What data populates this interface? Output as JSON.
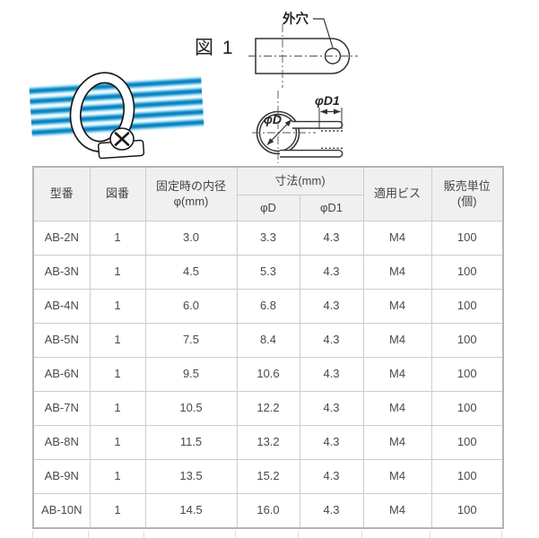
{
  "figure": {
    "label": "図 1",
    "outer_hole_label": "外穴",
    "phi_d_label": "φD",
    "phi_d1_label": "φD1"
  },
  "table": {
    "headers": {
      "model": "型番",
      "figure_no": "図番",
      "inner_diameter_line1": "固定時の内径",
      "inner_diameter_line2": "φ(mm)",
      "dimensions": "寸法(mm)",
      "phi_d": "φD",
      "phi_d1": "φD1",
      "screw": "適用ビス",
      "sales_unit_line1": "販売単位",
      "sales_unit_line2": "(個)"
    },
    "rows": [
      [
        "AB-2N",
        "1",
        "3.0",
        "3.3",
        "4.3",
        "M4",
        "100"
      ],
      [
        "AB-3N",
        "1",
        "4.5",
        "5.3",
        "4.3",
        "M4",
        "100"
      ],
      [
        "AB-4N",
        "1",
        "6.0",
        "6.8",
        "4.3",
        "M4",
        "100"
      ],
      [
        "AB-5N",
        "1",
        "7.5",
        "8.4",
        "4.3",
        "M4",
        "100"
      ],
      [
        "AB-6N",
        "1",
        "9.5",
        "10.6",
        "4.3",
        "M4",
        "100"
      ],
      [
        "AB-7N",
        "1",
        "10.5",
        "12.2",
        "4.3",
        "M4",
        "100"
      ],
      [
        "AB-8N",
        "1",
        "11.5",
        "13.2",
        "4.3",
        "M4",
        "100"
      ],
      [
        "AB-9N",
        "1",
        "13.5",
        "15.2",
        "4.3",
        "M4",
        "100"
      ],
      [
        "AB-10N",
        "1",
        "14.5",
        "16.0",
        "4.3",
        "M4",
        "100"
      ]
    ]
  },
  "colors": {
    "header_bg": "#f0f0f0",
    "cell_border": "#cccccc",
    "outer_border": "#b4b4b4",
    "text": "#4a4a4a",
    "tube_blue": "#1e9ad2",
    "tube_blue_dark": "#0d76b4",
    "line_black": "#333333"
  }
}
